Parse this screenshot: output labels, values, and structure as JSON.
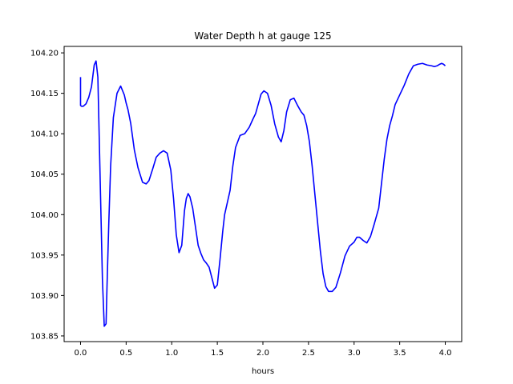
{
  "chart_data": {
    "type": "line",
    "title": "Water Depth h at gauge 125",
    "xlabel": "hours",
    "ylabel": "",
    "xlim": [
      -0.18,
      4.18
    ],
    "ylim": [
      103.843,
      104.208
    ],
    "xticks": [
      0.0,
      0.5,
      1.0,
      1.5,
      2.0,
      2.5,
      3.0,
      3.5,
      4.0
    ],
    "xtick_labels": [
      "0.0",
      "0.5",
      "1.0",
      "1.5",
      "2.0",
      "2.5",
      "3.0",
      "3.5",
      "4.0"
    ],
    "yticks": [
      103.85,
      103.9,
      103.95,
      104.0,
      104.05,
      104.1,
      104.15,
      104.2
    ],
    "ytick_labels": [
      "103.85",
      "103.90",
      "103.95",
      "104.00",
      "104.05",
      "104.10",
      "104.15",
      "104.20"
    ],
    "grid": false,
    "colors": {
      "line": "#0000ff"
    },
    "series": [
      {
        "x": [
          0.0,
          0.0,
          0.01,
          0.03,
          0.06,
          0.09,
          0.12,
          0.15,
          0.17,
          0.19,
          0.2,
          0.22,
          0.24,
          0.26,
          0.28,
          0.29,
          0.31,
          0.33,
          0.36,
          0.4,
          0.44,
          0.48,
          0.5,
          0.52,
          0.55,
          0.59,
          0.63,
          0.68,
          0.72,
          0.75,
          0.79,
          0.83,
          0.87,
          0.91,
          0.95,
          0.99,
          1.02,
          1.05,
          1.08,
          1.11,
          1.14,
          1.16,
          1.18,
          1.2,
          1.23,
          1.26,
          1.29,
          1.32,
          1.35,
          1.38,
          1.41,
          1.44,
          1.47,
          1.5,
          1.53,
          1.56,
          1.58,
          1.61,
          1.64,
          1.67,
          1.7,
          1.75,
          1.8,
          1.85,
          1.89,
          1.92,
          1.95,
          1.98,
          2.01,
          2.05,
          2.09,
          2.13,
          2.17,
          2.2,
          2.23,
          2.26,
          2.3,
          2.34,
          2.38,
          2.42,
          2.45,
          2.48,
          2.51,
          2.54,
          2.57,
          2.6,
          2.63,
          2.66,
          2.69,
          2.72,
          2.76,
          2.8,
          2.85,
          2.9,
          2.95,
          3.0,
          3.03,
          3.06,
          3.1,
          3.14,
          3.18,
          3.22,
          3.27,
          3.3,
          3.33,
          3.36,
          3.39,
          3.42,
          3.45,
          3.5,
          3.55,
          3.6,
          3.65,
          3.7,
          3.75,
          3.8,
          3.85,
          3.88,
          3.91,
          3.94,
          3.96,
          3.98,
          4.0
        ],
        "y": [
          104.17,
          104.135,
          104.134,
          104.134,
          104.137,
          104.145,
          104.158,
          104.185,
          104.19,
          104.17,
          104.12,
          104.02,
          103.92,
          103.862,
          103.865,
          103.91,
          103.99,
          104.06,
          104.12,
          104.15,
          104.159,
          104.148,
          104.138,
          104.13,
          104.113,
          104.08,
          104.058,
          104.04,
          104.038,
          104.042,
          104.056,
          104.071,
          104.076,
          104.079,
          104.076,
          104.055,
          104.02,
          103.975,
          103.953,
          103.962,
          104.005,
          104.02,
          104.026,
          104.022,
          104.008,
          103.985,
          103.962,
          103.952,
          103.944,
          103.94,
          103.935,
          103.922,
          103.909,
          103.913,
          103.945,
          103.98,
          104.0,
          104.015,
          104.03,
          104.06,
          104.083,
          104.098,
          104.1,
          104.108,
          104.118,
          104.125,
          104.137,
          104.149,
          104.153,
          104.15,
          104.135,
          104.112,
          104.096,
          104.09,
          104.104,
          104.127,
          104.142,
          104.144,
          104.135,
          104.127,
          104.123,
          104.11,
          104.09,
          104.06,
          104.025,
          103.99,
          103.955,
          103.927,
          103.911,
          103.905,
          103.905,
          103.91,
          103.928,
          103.949,
          103.961,
          103.966,
          103.972,
          103.972,
          103.968,
          103.965,
          103.973,
          103.988,
          104.008,
          104.038,
          104.068,
          104.093,
          104.11,
          104.122,
          104.136,
          104.148,
          104.16,
          104.174,
          104.184,
          104.186,
          104.187,
          104.185,
          104.184,
          104.183,
          104.184,
          104.186,
          104.187,
          104.186,
          104.184
        ]
      }
    ]
  }
}
